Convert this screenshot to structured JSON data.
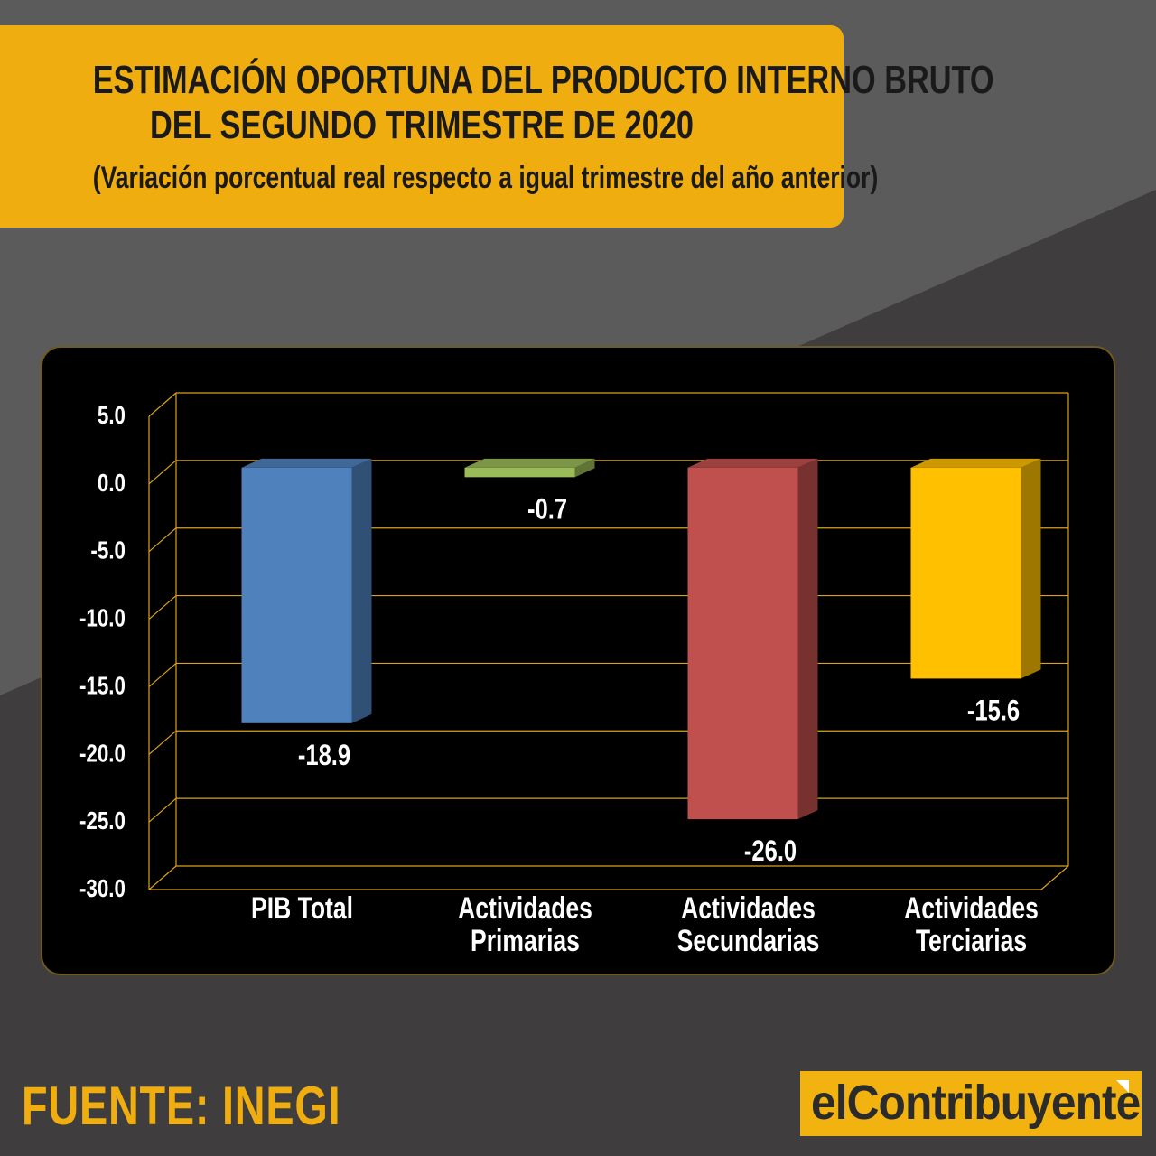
{
  "header": {
    "title_line1": "ESTIMACIÓN OPORTUNA DEL PRODUCTO INTERNO  BRUTO",
    "title_line2": "DEL SEGUNDO TRIMESTRE DE 2020",
    "subtitle": "(Variación porcentual real respecto a igual trimestre del año anterior)"
  },
  "footer": {
    "source": "FUENTE: INEGI",
    "logo_text": "elContribuyente"
  },
  "colors": {
    "accent": "#f0ad10",
    "background": "#3f3d3d",
    "gridline": "#d9a21a"
  },
  "chart_data": {
    "type": "bar",
    "categories": [
      [
        "PIB Total"
      ],
      [
        "Actividades",
        "Primarias"
      ],
      [
        "Actividades",
        "Secundarias"
      ],
      [
        "Actividades",
        "Terciarias"
      ]
    ],
    "values": [
      -18.9,
      -0.7,
      -26.0,
      -15.6
    ],
    "value_labels": [
      "-18.9",
      "-0.7",
      "-26.0",
      "-15.6"
    ],
    "bar_colors": [
      "#4f81bd",
      "#9bbb59",
      "#c0504d",
      "#ffc000"
    ],
    "ylim": [
      -30,
      5
    ],
    "yticks": [
      "5.0",
      "0.0",
      "-5.0",
      "-10.0",
      "-15.0",
      "-20.0",
      "-25.0",
      "-30.0"
    ],
    "ytick_values": [
      5,
      0,
      -5,
      -10,
      -15,
      -20,
      -25,
      -30
    ],
    "grid": true,
    "style": "3d"
  }
}
